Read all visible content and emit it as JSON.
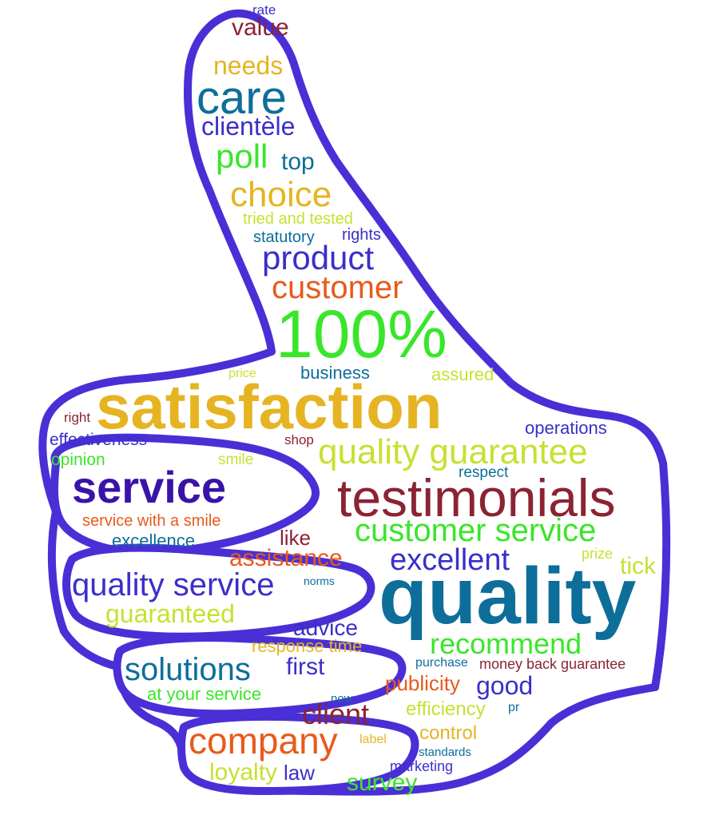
{
  "words": [
    {
      "text": "rate",
      "color": "#3b2fc9"
    },
    {
      "text": "value",
      "color": "#8b2332"
    },
    {
      "text": "needs",
      "color": "#e6b422"
    },
    {
      "text": "care",
      "color": "#0d6e9a"
    },
    {
      "text": "clientèle",
      "color": "#3b2fc9"
    },
    {
      "text": "poll",
      "color": "#39e629"
    },
    {
      "text": "top",
      "color": "#0d6e9a"
    },
    {
      "text": "choice",
      "color": "#e6b422"
    },
    {
      "text": "tried and tested",
      "color": "#c8e032"
    },
    {
      "text": "statutory",
      "color": "#0d6e9a"
    },
    {
      "text": "rights",
      "color": "#3b2fc9"
    },
    {
      "text": "product",
      "color": "#3b2fc9"
    },
    {
      "text": "customer",
      "color": "#e85a1b"
    },
    {
      "text": "100%",
      "color": "#39e629"
    },
    {
      "text": "price",
      "color": "#c8e032"
    },
    {
      "text": "business",
      "color": "#0d6e9a"
    },
    {
      "text": "assured",
      "color": "#c8e032"
    },
    {
      "text": "satisfaction",
      "color": "#e6b422"
    },
    {
      "text": "right",
      "color": "#8b2332"
    },
    {
      "text": "operations",
      "color": "#3b2fc9"
    },
    {
      "text": "effectiveness",
      "color": "#3b2fc9"
    },
    {
      "text": "shop",
      "color": "#8b2332"
    },
    {
      "text": "quality guarantee",
      "color": "#c8e032"
    },
    {
      "text": "opinion",
      "color": "#39e629"
    },
    {
      "text": "smile",
      "color": "#c8e032"
    },
    {
      "text": "respect",
      "color": "#0d6e9a"
    },
    {
      "text": "service",
      "color": "#3a13a8"
    },
    {
      "text": "testimonials",
      "color": "#8b2332"
    },
    {
      "text": "service with a smile",
      "color": "#e85a1b"
    },
    {
      "text": "customer service",
      "color": "#39e629"
    },
    {
      "text": "like",
      "color": "#8b2332"
    },
    {
      "text": "excellence",
      "color": "#0d6e9a"
    },
    {
      "text": "assistance",
      "color": "#e85a1b"
    },
    {
      "text": "prize",
      "color": "#c8e032"
    },
    {
      "text": "excellent",
      "color": "#3b2fc9"
    },
    {
      "text": "tick",
      "color": "#c8e032"
    },
    {
      "text": "quality service",
      "color": "#3b2fc9"
    },
    {
      "text": "norms",
      "color": "#0d6e9a"
    },
    {
      "text": "quality",
      "color": "#0d6e9a"
    },
    {
      "text": "guaranteed",
      "color": "#c8e032"
    },
    {
      "text": "advice",
      "color": "#3b2fc9"
    },
    {
      "text": "response time",
      "color": "#e6b422"
    },
    {
      "text": "recommend",
      "color": "#39e629"
    },
    {
      "text": "solutions",
      "color": "#0d6e9a"
    },
    {
      "text": "first",
      "color": "#3b2fc9"
    },
    {
      "text": "purchase",
      "color": "#0d6e9a"
    },
    {
      "text": "money back guarantee",
      "color": "#8b2332"
    },
    {
      "text": "publicity",
      "color": "#e85a1b"
    },
    {
      "text": "good",
      "color": "#3b2fc9"
    },
    {
      "text": "at your service",
      "color": "#39e629"
    },
    {
      "text": "now",
      "color": "#0d6e9a"
    },
    {
      "text": "client",
      "color": "#8b2332"
    },
    {
      "text": "efficiency",
      "color": "#c8e032"
    },
    {
      "text": "pr",
      "color": "#0d6e9a"
    },
    {
      "text": "company",
      "color": "#e85a1b"
    },
    {
      "text": "label",
      "color": "#e6b422"
    },
    {
      "text": "control",
      "color": "#e6b422"
    },
    {
      "text": "standards",
      "color": "#0d6e9a"
    },
    {
      "text": "marketing",
      "color": "#3b2fc9"
    },
    {
      "text": "loyalty",
      "color": "#c8e032"
    },
    {
      "text": "law",
      "color": "#3b2fc9"
    },
    {
      "text": "survey",
      "color": "#39e629"
    }
  ],
  "outline_color": "#4a2fd6"
}
